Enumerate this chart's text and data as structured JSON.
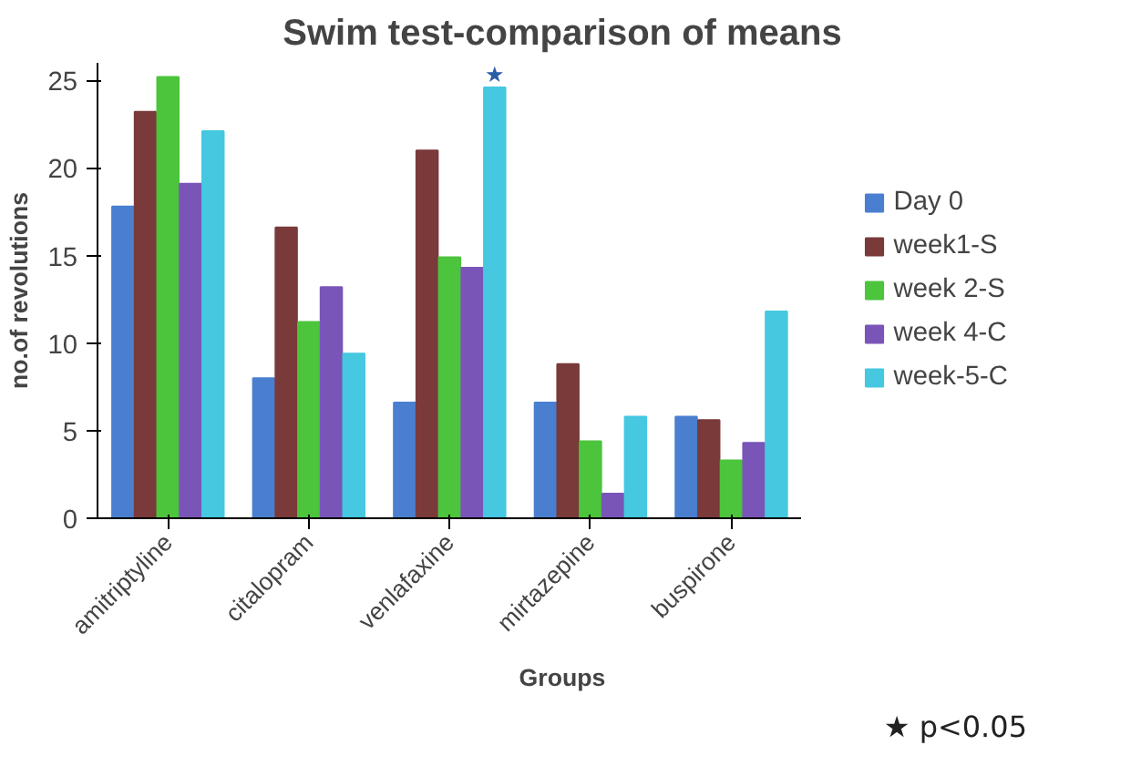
{
  "chart_data": {
    "type": "bar",
    "title": "Swim test-comparison of means",
    "xlabel": "Groups",
    "ylabel": "no.of revolutions",
    "categories": [
      "amitriptyline",
      "citalopram",
      "venlafaxine",
      "mirtazepine",
      "buspirone"
    ],
    "series": [
      {
        "name": "Day 0",
        "color": "#4a7fd0",
        "values": [
          17.8,
          8.0,
          6.6,
          6.6,
          5.8
        ]
      },
      {
        "name": "week1-S",
        "color": "#7a3a3a",
        "values": [
          23.2,
          16.6,
          21.0,
          8.8,
          5.6
        ]
      },
      {
        "name": "week 2-S",
        "color": "#4cc43c",
        "values": [
          25.2,
          11.2,
          14.9,
          4.4,
          3.3
        ]
      },
      {
        "name": "week 4-C",
        "color": "#7a55b8",
        "values": [
          19.1,
          13.2,
          14.3,
          1.4,
          4.3
        ]
      },
      {
        "name": "week-5-C",
        "color": "#45c8e0",
        "values": [
          22.1,
          9.4,
          24.6,
          5.8,
          11.8
        ]
      }
    ],
    "ylim": [
      0,
      26
    ],
    "yticks": [
      0,
      5,
      10,
      15,
      20,
      25
    ],
    "legend": "right",
    "annotations": [
      "★",
      "★ p<0.05"
    ]
  }
}
